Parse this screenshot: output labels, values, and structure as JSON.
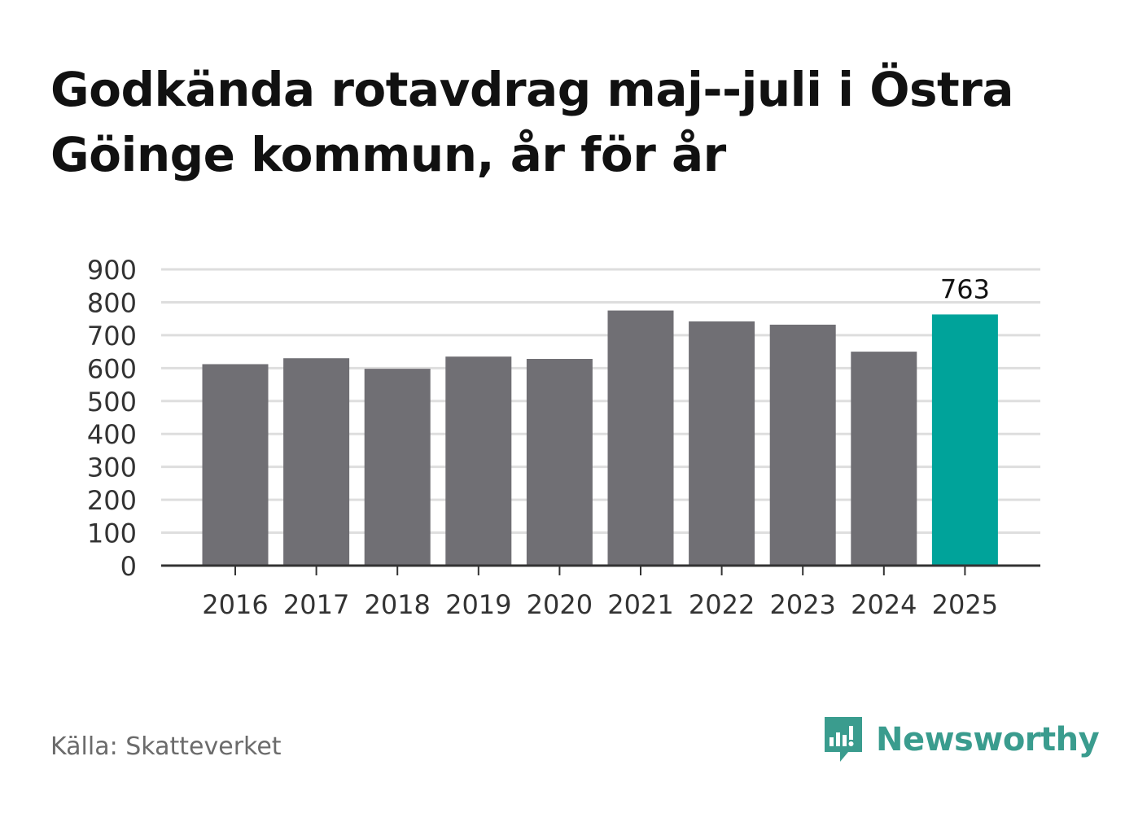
{
  "title": "Godkända rotavdrag maj--juli i Östra Göinge kommun, år för år",
  "source": "Källa: Skatteverket",
  "brand": {
    "name": "Newsworthy",
    "icon": "newsworthy-logo-icon"
  },
  "colors": {
    "bar": "#706f74",
    "highlight": "#00a39a",
    "grid": "#dedede",
    "axis": "#333333",
    "brand": "#3a9c8e"
  },
  "chart_data": {
    "type": "bar",
    "title": "Godkända rotavdrag maj--juli i Östra Göinge kommun, år för år",
    "categories": [
      "2016",
      "2017",
      "2018",
      "2019",
      "2020",
      "2021",
      "2022",
      "2023",
      "2024",
      "2025"
    ],
    "values": [
      612,
      630,
      598,
      635,
      628,
      775,
      742,
      732,
      650,
      763
    ],
    "highlight_index": 9,
    "data_labels": [
      {
        "index": 9,
        "text": "763"
      }
    ],
    "ylim": [
      0,
      900
    ],
    "yticks": [
      "0",
      "100",
      "200",
      "300",
      "400",
      "500",
      "600",
      "700",
      "800",
      "900"
    ],
    "grid": true,
    "xlabel": "",
    "ylabel": ""
  }
}
